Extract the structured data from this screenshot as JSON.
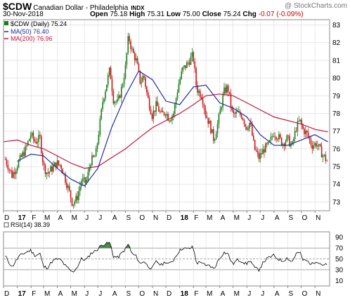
{
  "header": {
    "symbol": "$CDW",
    "name": "Canadian Dollar - Philadelphia",
    "exchange": "INDX",
    "watermark": "@ StockCharts.com",
    "date": "30-Nov-2018",
    "open_label": "Open",
    "open": "75.18",
    "high_label": "High",
    "high": "75.31",
    "low_label": "Low",
    "low": "75.00",
    "close_label": "Close",
    "close": "75.24",
    "chg_label": "Chg",
    "chg": "-0.07 (-0.09%)"
  },
  "legend": {
    "price": "$CDW (Daily) 75.24",
    "ma50": "MA(50) 76.40",
    "ma200": "MA(200) 76.96",
    "rsi": "RSI(14) 38.39"
  },
  "colors": {
    "up": "#1c7a1c",
    "down": "#c81818",
    "ma50": "#1f2f9e",
    "ma200": "#c0143c",
    "grid": "#d8d8d8"
  },
  "chart_data": [
    {
      "type": "candlestick",
      "title": "$CDW Canadian Dollar - Philadelphia",
      "ylim": [
        72.5,
        83.3
      ],
      "yticks": [
        73,
        74,
        75,
        76,
        77,
        78,
        79,
        80,
        81,
        82,
        83
      ],
      "x_range": [
        "2017-01-01",
        "2018-12-03"
      ],
      "x_tick_labels": [
        "D",
        "17",
        "F",
        "M",
        "A",
        "M",
        "J",
        "J",
        "A",
        "S",
        "O",
        "N",
        "D",
        "18",
        "F",
        "M",
        "A",
        "M",
        "J",
        "J",
        "A",
        "S",
        "O",
        "N"
      ],
      "x_tick_dates": [
        "2016-12-01",
        "2017-01-01",
        "2017-02-01",
        "2017-03-01",
        "2017-04-01",
        "2017-05-01",
        "2017-06-01",
        "2017-07-01",
        "2017-08-01",
        "2017-09-01",
        "2017-10-01",
        "2017-11-01",
        "2017-12-01",
        "2018-01-01",
        "2018-02-01",
        "2018-03-01",
        "2018-04-01",
        "2018-05-01",
        "2018-06-01",
        "2018-07-01",
        "2018-08-01",
        "2018-09-01",
        "2018-10-01",
        "2018-11-01"
      ],
      "close_path": [
        [
          "2016-12-05",
          75.4
        ],
        [
          "2016-12-20",
          74.5
        ],
        [
          "2017-01-05",
          75.3
        ],
        [
          "2017-01-20",
          76.0
        ],
        [
          "2017-01-31",
          76.8
        ],
        [
          "2017-02-10",
          76.4
        ],
        [
          "2017-02-21",
          76.6
        ],
        [
          "2017-03-01",
          75.0
        ],
        [
          "2017-03-10",
          74.6
        ],
        [
          "2017-03-20",
          74.9
        ],
        [
          "2017-03-31",
          75.2
        ],
        [
          "2017-04-10",
          75.0
        ],
        [
          "2017-04-20",
          74.2
        ],
        [
          "2017-05-01",
          73.3
        ],
        [
          "2017-05-05",
          72.9
        ],
        [
          "2017-05-15",
          73.2
        ],
        [
          "2017-05-25",
          74.2
        ],
        [
          "2017-06-05",
          74.1
        ],
        [
          "2017-06-15",
          75.3
        ],
        [
          "2017-06-26",
          75.6
        ],
        [
          "2017-07-05",
          77.3
        ],
        [
          "2017-07-12",
          78.7
        ],
        [
          "2017-07-20",
          79.6
        ],
        [
          "2017-07-28",
          80.5
        ],
        [
          "2017-08-05",
          78.8
        ],
        [
          "2017-08-15",
          78.6
        ],
        [
          "2017-08-25",
          79.6
        ],
        [
          "2017-09-01",
          80.6
        ],
        [
          "2017-09-08",
          82.4
        ],
        [
          "2017-09-15",
          81.6
        ],
        [
          "2017-09-25",
          81.0
        ],
        [
          "2017-10-05",
          79.7
        ],
        [
          "2017-10-12",
          80.2
        ],
        [
          "2017-10-20",
          79.0
        ],
        [
          "2017-10-31",
          77.9
        ],
        [
          "2017-11-10",
          78.5
        ],
        [
          "2017-11-20",
          77.9
        ],
        [
          "2017-11-30",
          78.1
        ],
        [
          "2017-12-08",
          77.7
        ],
        [
          "2017-12-18",
          78.0
        ],
        [
          "2017-12-29",
          79.6
        ],
        [
          "2018-01-08",
          80.5
        ],
        [
          "2018-01-18",
          80.8
        ],
        [
          "2018-01-31",
          81.3
        ],
        [
          "2018-02-08",
          79.4
        ],
        [
          "2018-02-20",
          79.0
        ],
        [
          "2018-02-28",
          78.0
        ],
        [
          "2018-03-09",
          77.4
        ],
        [
          "2018-03-19",
          76.5
        ],
        [
          "2018-03-29",
          77.6
        ],
        [
          "2018-04-10",
          79.2
        ],
        [
          "2018-04-19",
          79.5
        ],
        [
          "2018-04-30",
          77.9
        ],
        [
          "2018-05-10",
          78.0
        ],
        [
          "2018-05-21",
          77.9
        ],
        [
          "2018-05-31",
          77.2
        ],
        [
          "2018-06-08",
          77.5
        ],
        [
          "2018-06-18",
          76.0
        ],
        [
          "2018-06-28",
          75.5
        ],
        [
          "2018-07-10",
          76.0
        ],
        [
          "2018-07-20",
          76.2
        ],
        [
          "2018-07-31",
          76.9
        ],
        [
          "2018-08-10",
          76.7
        ],
        [
          "2018-08-20",
          76.3
        ],
        [
          "2018-08-31",
          76.6
        ],
        [
          "2018-09-10",
          76.1
        ],
        [
          "2018-09-20",
          77.2
        ],
        [
          "2018-09-28",
          77.6
        ],
        [
          "2018-10-05",
          77.1
        ],
        [
          "2018-10-15",
          76.8
        ],
        [
          "2018-10-25",
          76.2
        ],
        [
          "2018-11-05",
          76.3
        ],
        [
          "2018-11-15",
          75.8
        ],
        [
          "2018-11-30",
          75.24
        ]
      ],
      "ma50": [
        [
          "2017-01-01",
          75.3
        ],
        [
          "2017-02-01",
          75.7
        ],
        [
          "2017-03-01",
          75.6
        ],
        [
          "2017-04-01",
          74.9
        ],
        [
          "2017-05-01",
          74.3
        ],
        [
          "2017-06-01",
          73.9
        ],
        [
          "2017-07-01",
          74.9
        ],
        [
          "2017-08-01",
          77.2
        ],
        [
          "2017-09-01",
          79.0
        ],
        [
          "2017-10-01",
          80.4
        ],
        [
          "2017-11-01",
          79.9
        ],
        [
          "2017-12-01",
          78.7
        ],
        [
          "2018-01-01",
          78.5
        ],
        [
          "2018-02-01",
          79.5
        ],
        [
          "2018-03-01",
          79.6
        ],
        [
          "2018-04-01",
          78.6
        ],
        [
          "2018-05-01",
          78.3
        ],
        [
          "2018-06-01",
          77.8
        ],
        [
          "2018-07-01",
          76.8
        ],
        [
          "2018-08-01",
          76.2
        ],
        [
          "2018-09-01",
          76.2
        ],
        [
          "2018-10-01",
          76.5
        ],
        [
          "2018-11-01",
          76.8
        ],
        [
          "2018-11-30",
          76.4
        ]
      ],
      "ma200": [
        [
          "2016-12-01",
          76.4
        ],
        [
          "2017-01-01",
          76.5
        ],
        [
          "2017-02-01",
          76.2
        ],
        [
          "2017-03-01",
          76.0
        ],
        [
          "2017-04-01",
          75.6
        ],
        [
          "2017-05-01",
          75.2
        ],
        [
          "2017-06-01",
          74.9
        ],
        [
          "2017-07-01",
          75.0
        ],
        [
          "2017-08-01",
          75.5
        ],
        [
          "2017-09-01",
          76.0
        ],
        [
          "2017-10-01",
          76.6
        ],
        [
          "2017-11-01",
          77.2
        ],
        [
          "2017-12-01",
          77.6
        ],
        [
          "2018-01-01",
          78.0
        ],
        [
          "2018-02-01",
          78.5
        ],
        [
          "2018-03-01",
          79.0
        ],
        [
          "2018-04-01",
          79.1
        ],
        [
          "2018-05-01",
          79.0
        ],
        [
          "2018-06-01",
          78.6
        ],
        [
          "2018-07-01",
          78.2
        ],
        [
          "2018-08-01",
          77.8
        ],
        [
          "2018-09-01",
          77.6
        ],
        [
          "2018-10-01",
          77.4
        ],
        [
          "2018-11-01",
          77.1
        ],
        [
          "2018-11-30",
          76.96
        ]
      ]
    },
    {
      "type": "line",
      "title": "RSI(14)",
      "ylim": [
        0,
        100
      ],
      "yticks": [
        10,
        30,
        50,
        70,
        90
      ],
      "reference_lines": [
        30,
        50,
        70
      ],
      "x_tick_labels": [
        "D",
        "17",
        "F",
        "M",
        "A",
        "M",
        "J",
        "J",
        "A",
        "S",
        "O",
        "N",
        "D",
        "18",
        "F",
        "M",
        "A",
        "M",
        "J",
        "J",
        "A",
        "S",
        "O",
        "N"
      ],
      "rsi": [
        [
          "2016-12-05",
          55
        ],
        [
          "2016-12-20",
          35
        ],
        [
          "2017-01-05",
          55
        ],
        [
          "2017-01-20",
          62
        ],
        [
          "2017-01-31",
          66
        ],
        [
          "2017-02-10",
          56
        ],
        [
          "2017-02-21",
          60
        ],
        [
          "2017-03-01",
          35
        ],
        [
          "2017-03-10",
          34
        ],
        [
          "2017-03-20",
          45
        ],
        [
          "2017-03-31",
          50
        ],
        [
          "2017-04-10",
          47
        ],
        [
          "2017-04-20",
          36
        ],
        [
          "2017-05-01",
          28
        ],
        [
          "2017-05-05",
          25
        ],
        [
          "2017-05-15",
          34
        ],
        [
          "2017-05-25",
          50
        ],
        [
          "2017-06-05",
          48
        ],
        [
          "2017-06-15",
          60
        ],
        [
          "2017-06-26",
          65
        ],
        [
          "2017-07-05",
          72
        ],
        [
          "2017-07-12",
          77
        ],
        [
          "2017-07-20",
          78
        ],
        [
          "2017-07-28",
          80
        ],
        [
          "2017-08-05",
          55
        ],
        [
          "2017-08-15",
          52
        ],
        [
          "2017-08-25",
          62
        ],
        [
          "2017-09-01",
          68
        ],
        [
          "2017-09-08",
          78
        ],
        [
          "2017-09-15",
          60
        ],
        [
          "2017-09-25",
          55
        ],
        [
          "2017-10-05",
          40
        ],
        [
          "2017-10-12",
          47
        ],
        [
          "2017-10-20",
          38
        ],
        [
          "2017-10-31",
          32
        ],
        [
          "2017-11-10",
          46
        ],
        [
          "2017-11-20",
          38
        ],
        [
          "2017-11-30",
          45
        ],
        [
          "2017-12-08",
          40
        ],
        [
          "2017-12-18",
          48
        ],
        [
          "2017-12-29",
          63
        ],
        [
          "2018-01-08",
          70
        ],
        [
          "2018-01-18",
          68
        ],
        [
          "2018-01-31",
          72
        ],
        [
          "2018-02-08",
          42
        ],
        [
          "2018-02-20",
          45
        ],
        [
          "2018-02-28",
          36
        ],
        [
          "2018-03-09",
          38
        ],
        [
          "2018-03-19",
          31
        ],
        [
          "2018-03-29",
          48
        ],
        [
          "2018-04-10",
          62
        ],
        [
          "2018-04-19",
          60
        ],
        [
          "2018-04-30",
          40
        ],
        [
          "2018-05-10",
          48
        ],
        [
          "2018-05-21",
          46
        ],
        [
          "2018-05-31",
          40
        ],
        [
          "2018-06-08",
          48
        ],
        [
          "2018-06-18",
          33
        ],
        [
          "2018-06-28",
          30
        ],
        [
          "2018-07-10",
          46
        ],
        [
          "2018-07-20",
          52
        ],
        [
          "2018-07-31",
          56
        ],
        [
          "2018-08-10",
          50
        ],
        [
          "2018-08-20",
          46
        ],
        [
          "2018-08-31",
          52
        ],
        [
          "2018-09-10",
          44
        ],
        [
          "2018-09-20",
          60
        ],
        [
          "2018-09-28",
          62
        ],
        [
          "2018-10-05",
          48
        ],
        [
          "2018-10-15",
          46
        ],
        [
          "2018-10-25",
          40
        ],
        [
          "2018-11-05",
          47
        ],
        [
          "2018-11-15",
          40
        ],
        [
          "2018-11-30",
          38.39
        ]
      ]
    }
  ]
}
